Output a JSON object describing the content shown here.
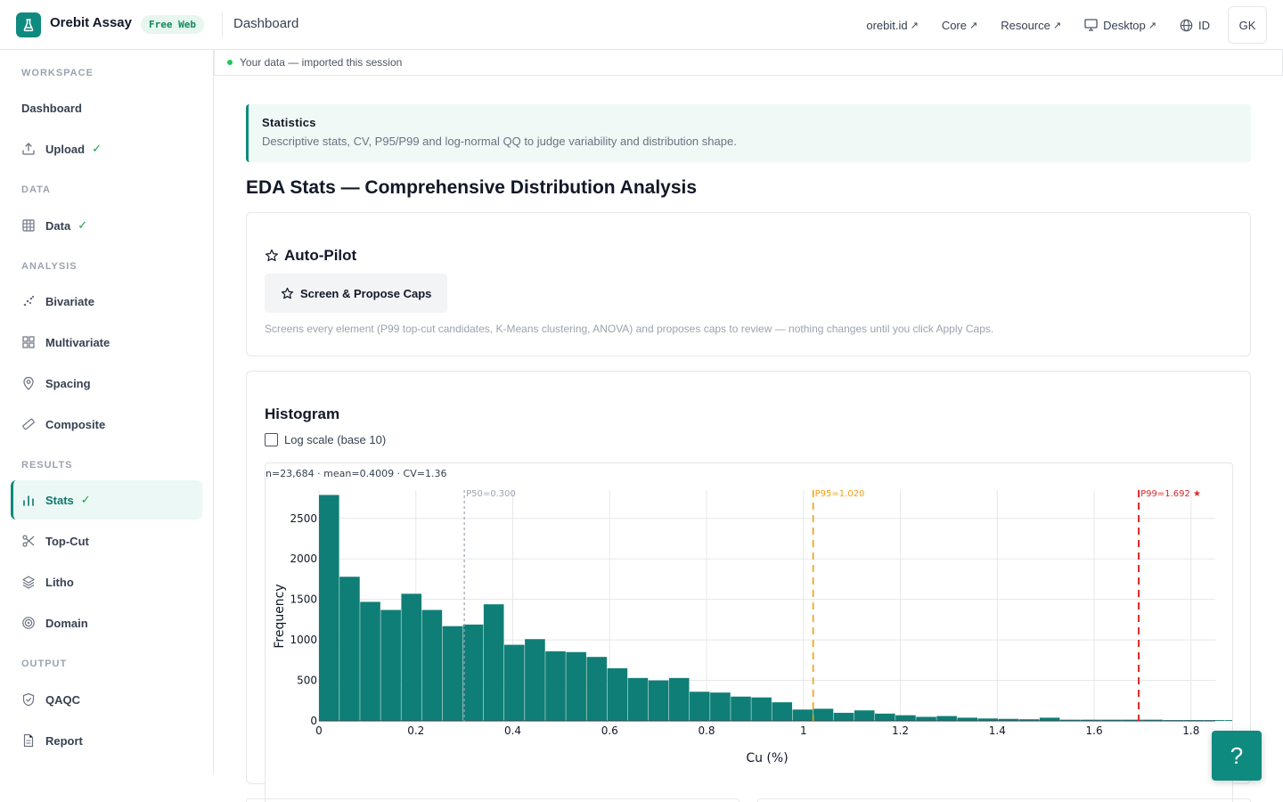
{
  "app": {
    "name": "Orebit Assay",
    "plan": "Free Web",
    "page": "Dashboard"
  },
  "topnav": {
    "links": [
      {
        "label": "orebit.id",
        "suffix": "↗"
      },
      {
        "label": "Core",
        "suffix": "↗"
      },
      {
        "label": "Resource",
        "suffix": "↗"
      },
      {
        "label": "Desktop",
        "suffix": "↗"
      }
    ],
    "language": "ID",
    "user_initials": "GK"
  },
  "sidebar": {
    "sections": [
      {
        "label": "WORKSPACE",
        "items": [
          {
            "label": "Dashboard",
            "icon": "none",
            "done": false,
            "active": false
          }
        ]
      },
      {
        "label": "",
        "items": [
          {
            "label": "Upload",
            "icon": "upload-icon",
            "done": true,
            "active": false
          }
        ]
      },
      {
        "label": "DATA",
        "items": [
          {
            "label": "Data",
            "icon": "table-icon",
            "done": true,
            "active": false
          }
        ]
      },
      {
        "label": "ANALYSIS",
        "items": [
          {
            "label": "Bivariate",
            "icon": "scatter-icon",
            "done": false,
            "active": false
          },
          {
            "label": "Multivariate",
            "icon": "grid-icon",
            "done": false,
            "active": false
          },
          {
            "label": "Spacing",
            "icon": "map-pin-icon",
            "done": false,
            "active": false
          },
          {
            "label": "Composite",
            "icon": "ruler-icon",
            "done": false,
            "active": false
          }
        ]
      },
      {
        "label": "RESULTS",
        "items": [
          {
            "label": "Stats",
            "icon": "bar-chart-icon",
            "done": true,
            "active": true
          },
          {
            "label": "Top-Cut",
            "icon": "scissors-icon",
            "done": false,
            "active": false
          },
          {
            "label": "Litho",
            "icon": "layers-icon",
            "done": false,
            "active": false
          },
          {
            "label": "Domain",
            "icon": "target-icon",
            "done": false,
            "active": false
          }
        ]
      },
      {
        "label": "OUTPUT",
        "items": [
          {
            "label": "QAQC",
            "icon": "shield-icon",
            "done": false,
            "active": false
          },
          {
            "label": "Report",
            "icon": "document-icon",
            "done": false,
            "active": false
          }
        ]
      }
    ]
  },
  "databar": {
    "text": "Your data — imported this session"
  },
  "info": {
    "heading": "Statistics",
    "description": "Descriptive stats, CV, P95/P99 and log-normal QQ to judge variability and distribution shape."
  },
  "page_title": "EDA Stats — Comprehensive Distribution Analysis",
  "autopilot": {
    "title": "Auto-Pilot",
    "button": "Screen & Propose Caps",
    "description": "Screens every element (P99 top-cut candidates, K-Means clustering, ANOVA) and proposes caps to review — nothing changes until you click Apply Caps."
  },
  "histogram": {
    "title": "Histogram",
    "log_scale_label": "Log scale (base 10)",
    "log_scale_checked": false
  },
  "chart_data": {
    "type": "bar",
    "summary": "n=23,684 · mean=0.4009 · CV=1.36",
    "xlabel": "Cu (%)",
    "ylabel": "Frequency",
    "xlim": [
      0,
      1.85
    ],
    "ylim": [
      0,
      2850
    ],
    "x_ticks": [
      0,
      0.2,
      0.4,
      0.6,
      0.8,
      1,
      1.2,
      1.4,
      1.6,
      1.8
    ],
    "x_tick_labels": [
      "0",
      "0.2",
      "0.4",
      "0.6",
      "0.8",
      "1",
      "1.2",
      "1.4",
      "1.6",
      "1.8"
    ],
    "y_ticks": [
      0,
      500,
      1000,
      1500,
      2000,
      2500
    ],
    "y_tick_labels": [
      "0",
      "500",
      "1000",
      "1500",
      "2000",
      "2500"
    ],
    "bin_width": 0.0425,
    "bin_start": 0,
    "values": [
      2790,
      1780,
      1470,
      1370,
      1570,
      1370,
      1170,
      1190,
      1440,
      940,
      1010,
      860,
      850,
      790,
      650,
      530,
      500,
      530,
      360,
      350,
      300,
      290,
      230,
      140,
      150,
      100,
      130,
      90,
      70,
      50,
      60,
      40,
      30,
      25,
      20,
      40,
      15,
      15,
      15,
      15,
      15,
      10,
      10,
      10,
      10,
      10,
      20
    ],
    "grid": true,
    "bar_color": "#0f7e76",
    "markers": [
      {
        "value": 0.3,
        "label": "P50=0.300",
        "color": "#9ca3af"
      },
      {
        "value": 1.02,
        "label": "P95=1.020",
        "color": "#f59e0b"
      },
      {
        "value": 1.692,
        "label": "P99=1.692 ★",
        "color": "#dc2626"
      }
    ]
  },
  "help_button": "?"
}
